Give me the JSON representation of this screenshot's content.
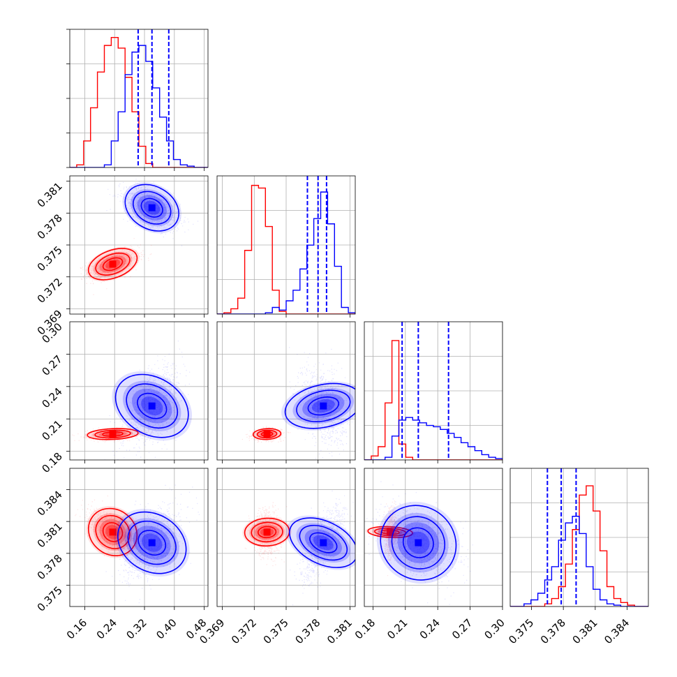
{
  "chart_data": {
    "type": "corner",
    "grid": true,
    "params": [
      {
        "range": [
          0.12,
          0.49
        ],
        "ticks": [
          "0.16",
          "0.24",
          "0.32",
          "0.40",
          "0.48"
        ]
      },
      {
        "range": [
          0.3685,
          0.3815
        ],
        "ticks": [
          "0.369",
          "0.372",
          "0.375",
          "0.378",
          "0.381"
        ]
      },
      {
        "range": [
          0.172,
          0.3
        ],
        "ticks": [
          "0.18",
          "0.21",
          "0.24",
          "0.27",
          "0.30"
        ]
      },
      {
        "range": [
          0.373,
          0.386
        ],
        "ticks": [
          "0.375",
          "0.378",
          "0.381",
          "0.384"
        ]
      }
    ],
    "y_tick_override": {
      "2": [
        0.18,
        0.21,
        0.24,
        0.27
      ],
      "3": [
        0.375,
        0.378,
        0.381,
        0.384
      ]
    },
    "series": [
      {
        "color": "#ff0000",
        "mean": [
          0.235,
          0.3732,
          0.196,
          0.38
        ],
        "sd": [
          0.034,
          0.00065,
          0.0025,
          0.00105
        ],
        "corr": [
          [
            1,
            0.55,
            0.2,
            -0.6
          ],
          [
            0.55,
            1,
            0.1,
            -0.05
          ],
          [
            0.2,
            0.1,
            1,
            0.2
          ],
          [
            -0.6,
            -0.05,
            0.2,
            1
          ]
        ],
        "hist": [
          {
            "edges": [
              0.12,
              0.49
            ],
            "counts": [
              0,
              0.02,
              0.2,
              0.45,
              0.72,
              0.92,
              0.98,
              0.9,
              0.68,
              0.42,
              0.16,
              0.03,
              0,
              0,
              0,
              0,
              0,
              0,
              0,
              0
            ]
          },
          {
            "edges": [
              0.3685,
              0.3815
            ],
            "counts": [
              0,
              0.01,
              0.04,
              0.12,
              0.48,
              0.97,
              0.95,
              0.66,
              0.18,
              0.02,
              0,
              0,
              0,
              0,
              0,
              0,
              0,
              0,
              0,
              0
            ]
          },
          {
            "edges": [
              0.172,
              0.3
            ],
            "counts": [
              0.0,
              0.03,
              0.1,
              0.43,
              0.9,
              0.12,
              0.02,
              0,
              0,
              0,
              0,
              0,
              0,
              0,
              0,
              0,
              0,
              0,
              0,
              0
            ]
          },
          {
            "edges": [
              0.373,
              0.386
            ],
            "counts": [
              0,
              0,
              0,
              0,
              0,
              0.02,
              0.06,
              0.15,
              0.32,
              0.58,
              0.84,
              0.91,
              0.72,
              0.42,
              0.15,
              0.06,
              0.03,
              0.01,
              0,
              0
            ]
          }
        ]
      },
      {
        "color": "#0000ff",
        "mean": [
          0.34,
          0.3785,
          0.222,
          0.379
        ],
        "sd": [
          0.038,
          0.001,
          0.018,
          0.0017
        ],
        "corr": [
          [
            1,
            -0.5,
            0.6,
            0.5
          ],
          [
            -0.5,
            1,
            -0.3,
            0.7
          ],
          [
            0.6,
            -0.3,
            1,
            -0.4
          ],
          [
            0.5,
            0.7,
            -0.4,
            1
          ]
        ],
        "quantiles": [
          [
            0.303,
            0.34,
            0.385
          ],
          [
            0.377,
            0.378,
            0.3788
          ],
          [
            0.207,
            0.222,
            0.25
          ],
          [
            0.3765,
            0.3778,
            0.3792
          ]
        ],
        "hist": [
          {
            "edges": [
              0.12,
              0.49
            ],
            "counts": [
              0,
              0,
              0,
              0,
              0,
              0.02,
              0.2,
              0.42,
              0.7,
              0.87,
              0.92,
              0.8,
              0.6,
              0.38,
              0.2,
              0.06,
              0.02,
              0.01,
              0,
              0
            ]
          },
          {
            "edges": [
              0.3685,
              0.3815
            ],
            "counts": [
              0,
              0,
              0,
              0,
              0,
              0,
              0,
              0.01,
              0.05,
              0.03,
              0.1,
              0.18,
              0.34,
              0.52,
              0.72,
              0.92,
              0.68,
              0.36,
              0.05,
              0.01
            ]
          },
          {
            "edges": [
              0.172,
              0.3
            ],
            "counts": [
              0,
              0,
              0,
              0.02,
              0.18,
              0.3,
              0.32,
              0.3,
              0.28,
              0.26,
              0.25,
              0.23,
              0.2,
              0.17,
              0.13,
              0.1,
              0.07,
              0.04,
              0.02,
              0.01
            ]
          },
          {
            "edges": [
              0.373,
              0.386
            ],
            "counts": [
              0,
              0,
              0.02,
              0.05,
              0.1,
              0.2,
              0.3,
              0.5,
              0.63,
              0.68,
              0.55,
              0.3,
              0.13,
              0.05,
              0.02,
              0.01,
              0,
              0,
              0,
              0
            ]
          }
        ]
      }
    ]
  }
}
